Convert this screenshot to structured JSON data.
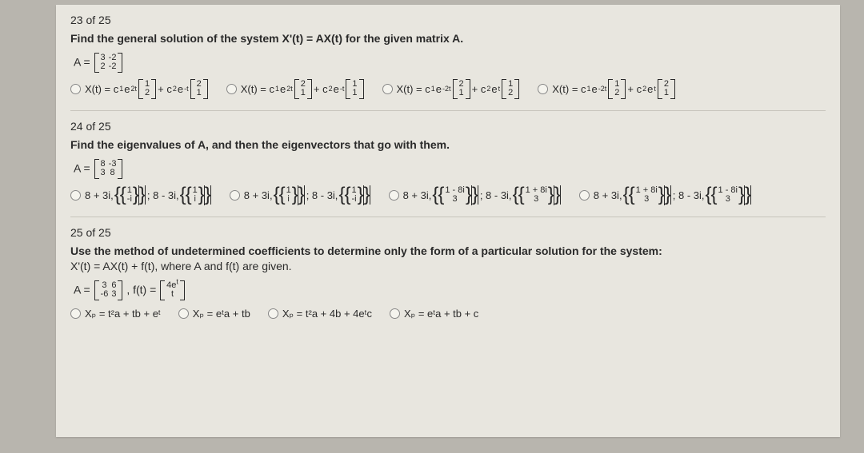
{
  "q23": {
    "counter": "23  of 25",
    "prompt": "Find the general solution of the system X'(t) = AX(t) for the given matrix A.",
    "A_label": "A =",
    "A": [
      [
        "3",
        "-2"
      ],
      [
        "2",
        "-2"
      ]
    ],
    "options": [
      {
        "lead": "X(t) = c",
        "s1": "1",
        "e1": "2t",
        "m1": [
          "1",
          "2"
        ],
        "plus": " + c",
        "s2": "2",
        "e2": "-t",
        "m2": [
          "2",
          "1"
        ]
      },
      {
        "lead": "X(t) = c",
        "s1": "1",
        "e1": "2t",
        "m1": [
          "2",
          "1"
        ],
        "plus": " + c",
        "s2": "2",
        "e2": "-t",
        "m2": [
          "1",
          "1"
        ]
      },
      {
        "lead": "X(t) = c",
        "s1": "1",
        "e1": "-2t",
        "m1": [
          "2",
          "1"
        ],
        "plus": " + c",
        "s2": "2",
        "e2": "t",
        "m2": [
          "1",
          "2"
        ]
      },
      {
        "lead": "X(t) = c",
        "s1": "1",
        "e1": "-2t",
        "m1": [
          "1",
          "2"
        ],
        "plus": " + c",
        "s2": "2",
        "e2": "t",
        "m2": [
          "2",
          "1"
        ]
      }
    ]
  },
  "q24": {
    "counter": "24  of 25",
    "prompt": "Find the eigenvalues of A, and then the eigenvectors that go with them.",
    "A_label": "A =",
    "A": [
      [
        "8",
        "-3"
      ],
      [
        "3",
        "8"
      ]
    ],
    "options": [
      {
        "ev1": "8 + 3i,",
        "vec1": [
          "1",
          "-i"
        ],
        "sep": " ; ",
        "ev2": "8 - 3i,",
        "vec2": [
          "1",
          "i"
        ]
      },
      {
        "ev1": "8 + 3i,",
        "vec1": [
          "1",
          "i"
        ],
        "sep": " ; ",
        "ev2": "8 - 3i,",
        "vec2": [
          "1",
          "-i"
        ]
      },
      {
        "ev1": "8 + 3i,",
        "vec1t": [
          "1 - 8i",
          "3"
        ],
        "sep": " ; ",
        "ev2": "8 - 3i,",
        "vec2t": [
          "1 + 8i",
          "3"
        ]
      },
      {
        "ev1": "8 + 3i,",
        "vec1t": [
          "1 + 8i",
          "3"
        ],
        "sep": " ; ",
        "ev2": "8 - 3i,",
        "vec2t": [
          "1 - 8i",
          "3"
        ]
      }
    ]
  },
  "q25": {
    "counter": "25  of 25",
    "prompt_line1": "Use the method of undetermined coefficients to determine only the form of a particular solution for the system:",
    "prompt_line2": "X'(t) = AX(t) + f(t), where A and f(t) are given.",
    "A_label": "A =",
    "A": [
      [
        "3",
        "6"
      ],
      [
        "-6",
        "3"
      ]
    ],
    "f_label": ", f(t) =",
    "f": [
      [
        "4e",
        "t"
      ],
      [
        "t",
        ""
      ]
    ],
    "options": [
      "Xₚ = t²a + tb + eᵗ",
      "Xₚ = eᵗa + tb",
      "Xₚ = t²a + 4b + 4eᵗc",
      "Xₚ = eᵗa + tb + c"
    ]
  }
}
